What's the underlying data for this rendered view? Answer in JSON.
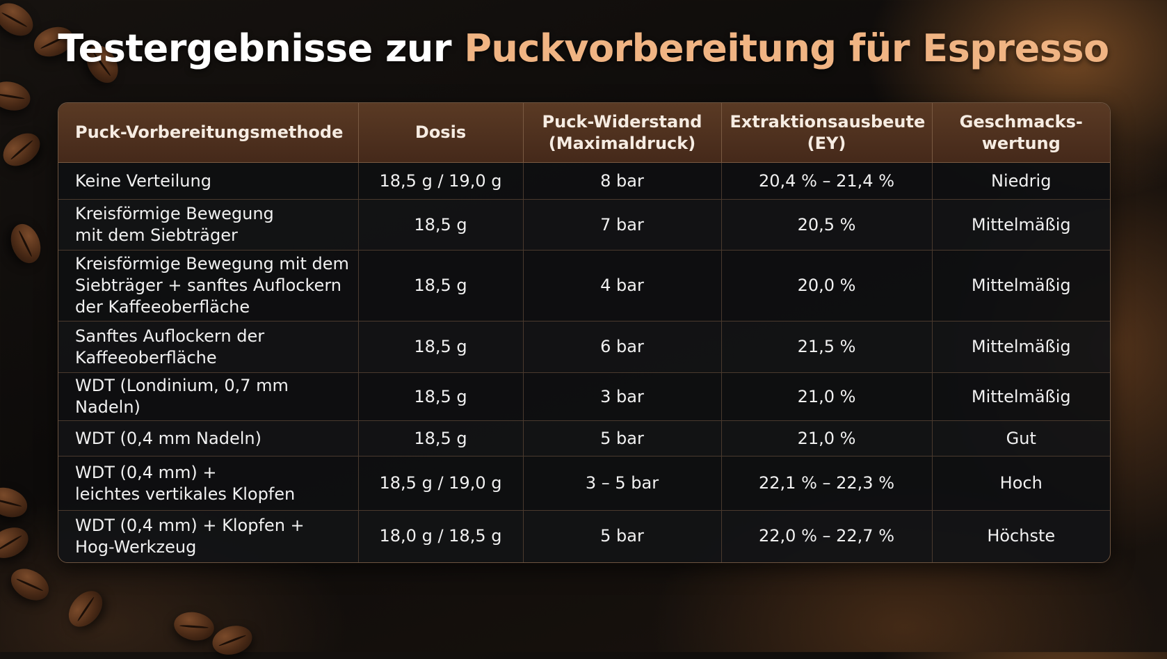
{
  "title": {
    "main": "Testergebnisse zur ",
    "accent": "Puckvorbereitung für Espresso"
  },
  "table": {
    "headers": [
      "Puck-Vorbereitungsmethode",
      "Dosis",
      "Puck-Widerstand\n(Maximaldruck)",
      "Extraktionsausbeute\n(EY)",
      "Geschmacks-\nwertung"
    ],
    "rows": [
      {
        "method": "Keine Verteilung",
        "dose": "18,5 g / 19,0 g",
        "resistance": "8 bar",
        "yield": "20,4 % – 21,4 %",
        "rating": "Niedrig"
      },
      {
        "method": "Kreisförmige Bewegung\nmit dem Siebträger",
        "dose": "18,5 g",
        "resistance": "7 bar",
        "yield": "20,5 %",
        "rating": "Mittelmäßig"
      },
      {
        "method": "Kreisförmige Bewegung mit dem\nSiebträger + sanftes Auflockern\nder Kaffeeoberfläche",
        "dose": "18,5 g",
        "resistance": "4 bar",
        "yield": "20,0 %",
        "rating": "Mittelmäßig"
      },
      {
        "method": "Sanftes Auflockern der\nKaffeeoberfläche",
        "dose": "18,5 g",
        "resistance": "6 bar",
        "yield": "21,5 %",
        "rating": "Mittelmäßig"
      },
      {
        "method": "WDT (Londinium, 0,7 mm Nadeln)",
        "dose": "18,5 g",
        "resistance": "3 bar",
        "yield": "21,0 %",
        "rating": "Mittelmäßig"
      },
      {
        "method": "WDT (0,4 mm Nadeln)",
        "dose": "18,5 g",
        "resistance": "5 bar",
        "yield": "21,0 %",
        "rating": "Gut"
      },
      {
        "method": "WDT (0,4 mm) +\nleichtes vertikales Klopfen",
        "dose": "18,5 g / 19,0 g",
        "resistance": "3 – 5 bar",
        "yield": "22,1 % – 22,3 %",
        "rating": "Hoch"
      },
      {
        "method": "WDT (0,4 mm) + Klopfen +\nHog-Werkzeug",
        "dose": "18,0 g / 18,5 g",
        "resistance": "5 bar",
        "yield": "22,0 % – 22,7 %",
        "rating": "Höchste"
      }
    ]
  }
}
